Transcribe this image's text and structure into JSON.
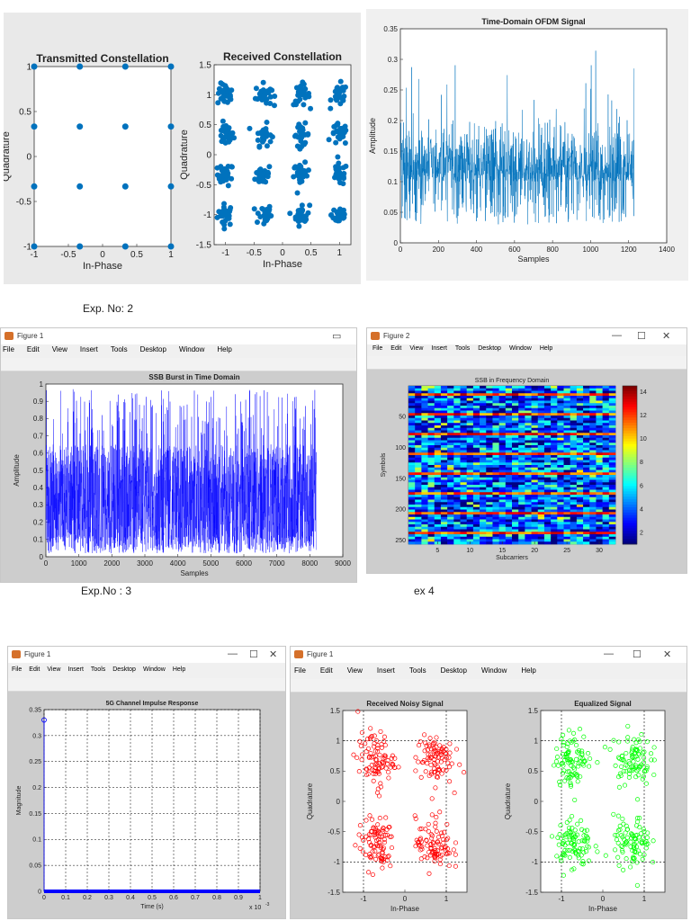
{
  "captions": {
    "exp2": "Exp. No: 2",
    "exp3": "Exp.No : 3",
    "ex4": "ex 4"
  },
  "figures": {
    "fig1": {
      "title": "Figure 1"
    },
    "fig2": {
      "title": "Figure 2"
    },
    "fig3": {
      "title": "Figure 1"
    },
    "fig4": {
      "title": "Figure 1"
    }
  },
  "menu_items": [
    "File",
    "Edit",
    "View",
    "Insert",
    "Tools",
    "Desktop",
    "Window",
    "Help"
  ],
  "colors": {
    "matlab_blue": "#0072bd",
    "pure_blue": "#0000ff",
    "red": "#ff0000",
    "green": "#00ff00",
    "fig_bg": "#cdcdcd"
  },
  "chart_data": [
    {
      "id": "tx",
      "type": "scatter",
      "title": "Transmitted Constellation",
      "xlabel": "In-Phase",
      "ylabel": "Quadrature",
      "xlim": [
        -1,
        1
      ],
      "ylim": [
        -1,
        1
      ],
      "xticks": [
        "-1",
        "-0.5",
        "0",
        "0.5",
        "1"
      ],
      "yticks": [
        "-1",
        "-0.5",
        "0",
        "0.5",
        "1"
      ],
      "x_levels": [
        -1,
        -0.333,
        0.333,
        1
      ],
      "y_levels": [
        -1,
        -0.333,
        0.333,
        1
      ]
    },
    {
      "id": "rx",
      "type": "scatter",
      "title": "Received Constellation",
      "xlabel": "In-Phase",
      "ylabel": "Quadrature",
      "xlim": [
        -1.2,
        1.2
      ],
      "ylim": [
        -1.5,
        1.5
      ],
      "xticks": [
        "-1",
        "-0.5",
        "0",
        "0.5",
        "1"
      ],
      "yticks": [
        "-1.5",
        "-1",
        "-0.5",
        "0",
        "0.5",
        "1",
        "1.5"
      ],
      "x_levels": [
        -1,
        -0.333,
        0.333,
        1
      ],
      "y_levels": [
        -1,
        -0.333,
        0.333,
        1
      ]
    },
    {
      "id": "ofdm",
      "type": "line",
      "title": "Time-Domain OFDM Signal",
      "xlabel": "Samples",
      "ylabel": "Amplitude",
      "xlim": [
        0,
        1400
      ],
      "ylim": [
        0,
        0.35
      ],
      "xticks": [
        "0",
        "200",
        "400",
        "600",
        "800",
        "1000",
        "1200",
        "1400"
      ],
      "yticks": [
        "0",
        "0.05",
        "0.1",
        "0.15",
        "0.2",
        "0.25",
        "0.3",
        "0.35"
      ],
      "n_samples": 1230
    },
    {
      "id": "ssb_time",
      "type": "line",
      "title": "SSB Burst in Time Domain",
      "xlabel": "Samples",
      "ylabel": "Amplitude",
      "xlim": [
        0,
        9000
      ],
      "ylim": [
        0,
        1
      ],
      "xticks": [
        "0",
        "1000",
        "2000",
        "3000",
        "4000",
        "5000",
        "6000",
        "7000",
        "8000",
        "9000"
      ],
      "yticks": [
        "0",
        "0.1",
        "0.2",
        "0.3",
        "0.4",
        "0.5",
        "0.6",
        "0.7",
        "0.8",
        "0.9",
        "1"
      ],
      "n_samples": 8200
    },
    {
      "id": "ssb_freq",
      "type": "heatmap",
      "title": "SSB in Frequency Domain",
      "xlabel": "Subcarriers",
      "ylabel": "Symbols",
      "xticks": [
        "5",
        "10",
        "15",
        "20",
        "25",
        "30"
      ],
      "yticks": [
        "50",
        "100",
        "150",
        "200",
        "250"
      ],
      "colorbar_ticks": [
        "2",
        "4",
        "6",
        "8",
        "10",
        "12",
        "14"
      ],
      "cols": 32,
      "rows": 256,
      "clim": [
        1,
        14.5
      ]
    },
    {
      "id": "impulse",
      "type": "line",
      "title": "5G Channel Impulse Response",
      "xlabel": "Time (s)",
      "ylabel": "Magnitude",
      "xlim": [
        0,
        1
      ],
      "ylim": [
        0,
        0.35
      ],
      "xticks": [
        "0",
        "0.1",
        "0.2",
        "0.3",
        "0.4",
        "0.5",
        "0.6",
        "0.7",
        "0.8",
        "0.9",
        "1"
      ],
      "yticks": [
        "0",
        "0.05",
        "0.1",
        "0.15",
        "0.2",
        "0.25",
        "0.3",
        "0.35"
      ],
      "x_multiplier": "x 10",
      "x_multiplier_exp": "-3",
      "peak": 0.33
    },
    {
      "id": "noisy",
      "type": "scatter",
      "title": "Received Noisy Signal",
      "xlabel": "In-Phase",
      "ylabel": "Quadrature",
      "xlim": [
        -1.5,
        1.5
      ],
      "ylim": [
        -1.5,
        1.5
      ],
      "xticks": [
        "-1",
        "0",
        "1"
      ],
      "yticks": [
        "-1.5",
        "-1",
        "-0.5",
        "0",
        "0.5",
        "1",
        "1.5"
      ],
      "centers": [
        [
          -0.7,
          0.7
        ],
        [
          0.7,
          0.7
        ],
        [
          -0.7,
          -0.7
        ],
        [
          0.7,
          -0.7
        ]
      ]
    },
    {
      "id": "equalized",
      "type": "scatter",
      "title": "Equalized Signal",
      "xlabel": "In-Phase",
      "ylabel": "Quadrature",
      "xlim": [
        -1.5,
        1.5
      ],
      "ylim": [
        -1.5,
        1.5
      ],
      "xticks": [
        "-1",
        "0",
        "1"
      ],
      "yticks": [
        "-1.5",
        "-1",
        "-0.5",
        "0",
        "0.5",
        "1",
        "1.5"
      ],
      "centers": [
        [
          -0.7,
          0.7
        ],
        [
          0.7,
          0.7
        ],
        [
          -0.7,
          -0.7
        ],
        [
          0.7,
          -0.7
        ]
      ]
    }
  ]
}
